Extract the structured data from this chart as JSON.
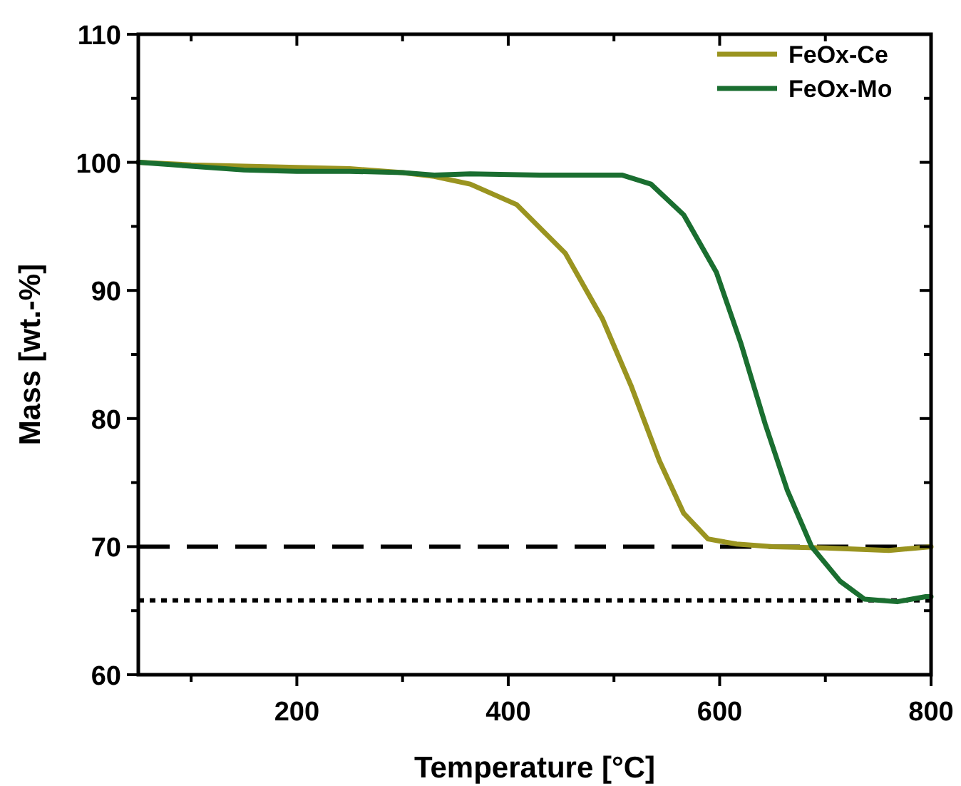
{
  "chart_data": {
    "type": "line",
    "xlabel": "Temperature [°C]",
    "ylabel": "Mass [wt.-%]",
    "xlim": [
      50,
      800
    ],
    "ylim": [
      60,
      110
    ],
    "xticks": [
      {
        "value": 100,
        "label": null
      },
      200,
      {
        "value": 300,
        "label": null
      },
      400,
      {
        "value": 500,
        "label": null
      },
      600,
      {
        "value": 700,
        "label": null
      },
      800
    ],
    "yticks": [
      60,
      {
        "value": 65,
        "label": null
      },
      70,
      {
        "value": 75,
        "label": null
      },
      80,
      {
        "value": 85,
        "label": null
      },
      90,
      {
        "value": 95,
        "label": null
      },
      100,
      {
        "value": 105,
        "label": null
      },
      110
    ],
    "legend": "top right",
    "line_style": "solid",
    "marker": "none",
    "grid": false,
    "series": [
      {
        "name": "FeOx-Ce",
        "color": "#9a9420",
        "x": [
          50,
          100,
          150,
          200,
          250,
          300,
          330,
          364,
          408,
          454,
          489,
          516,
          543,
          566,
          589,
          616,
          650,
          700,
          760,
          800
        ],
        "values": [
          100,
          99.8,
          99.7,
          99.6,
          99.5,
          99.2,
          98.9,
          98.3,
          96.7,
          92.9,
          87.8,
          82.6,
          76.7,
          72.6,
          70.6,
          70.2,
          70.0,
          69.9,
          69.7,
          70.0
        ]
      },
      {
        "name": "FeOx-Mo",
        "color": "#1a6e30",
        "x": [
          50,
          100,
          150,
          200,
          250,
          300,
          330,
          364,
          430,
          508,
          535,
          566,
          597,
          620,
          643,
          664,
          687,
          714,
          737,
          768,
          795,
          800
        ],
        "values": [
          100,
          99.7,
          99.4,
          99.3,
          99.3,
          99.2,
          99.0,
          99.1,
          99.0,
          99.0,
          98.3,
          95.9,
          91.4,
          85.9,
          79.6,
          74.4,
          70.0,
          67.3,
          65.9,
          65.7,
          66.1,
          66.1
        ]
      }
    ],
    "ref_lines": [
      {
        "axis": "y",
        "value": 70,
        "color": "#000000",
        "line_style": "dashed"
      },
      {
        "axis": "y",
        "value": 65.8,
        "color": "#000000",
        "line_style": "dotted"
      }
    ]
  }
}
